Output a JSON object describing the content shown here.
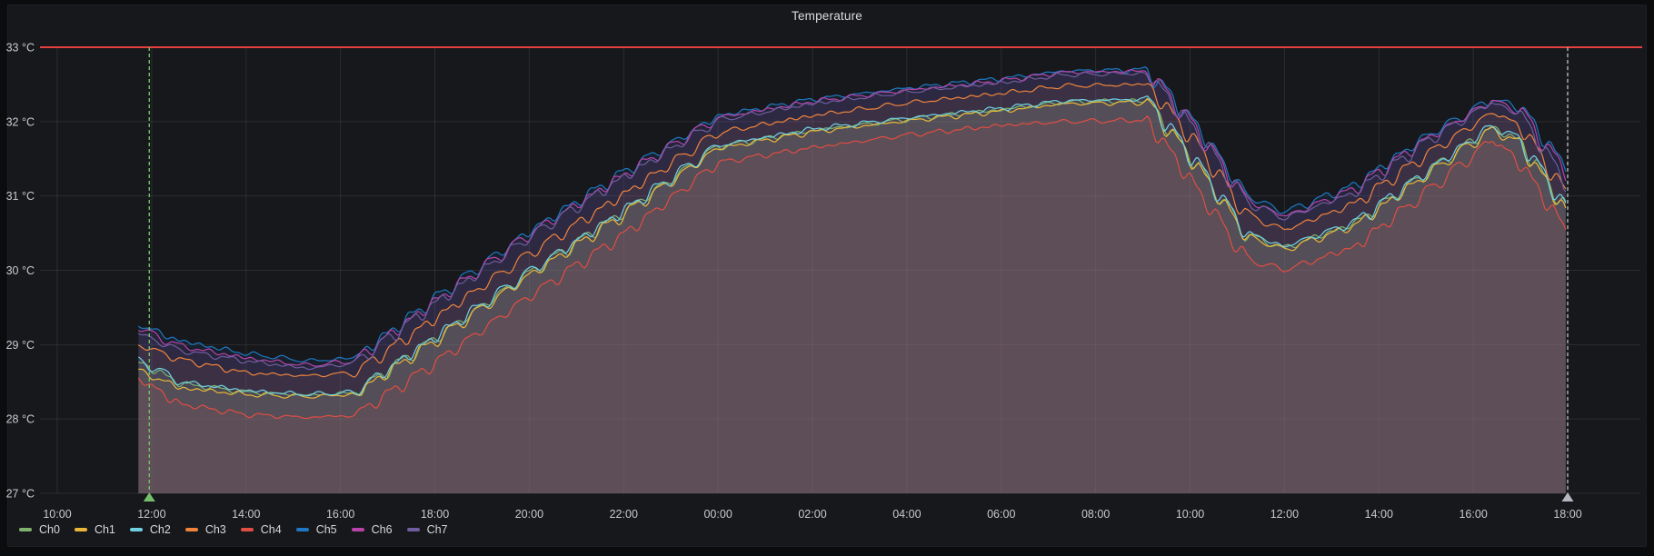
{
  "panel": {
    "title": "Temperature"
  },
  "chart_data": {
    "type": "line",
    "title": "Temperature",
    "unit": "°C",
    "ylim": [
      27,
      33
    ],
    "grid": true,
    "legend_position": "bottom-left",
    "y_ticks": [
      {
        "value": 27,
        "label": "27 °C"
      },
      {
        "value": 28,
        "label": "28 °C"
      },
      {
        "value": 29,
        "label": "29 °C"
      },
      {
        "value": 30,
        "label": "30 °C"
      },
      {
        "value": 31,
        "label": "31 °C"
      },
      {
        "value": 32,
        "label": "32 °C"
      },
      {
        "value": 33,
        "label": "33 °C"
      }
    ],
    "x_ticks": [
      {
        "t": 0,
        "label": "10:00"
      },
      {
        "t": 2,
        "label": "12:00"
      },
      {
        "t": 4,
        "label": "14:00"
      },
      {
        "t": 6,
        "label": "16:00"
      },
      {
        "t": 8,
        "label": "18:00"
      },
      {
        "t": 10,
        "label": "20:00"
      },
      {
        "t": 12,
        "label": "22:00"
      },
      {
        "t": 14,
        "label": "00:00"
      },
      {
        "t": 16,
        "label": "02:00"
      },
      {
        "t": 18,
        "label": "04:00"
      },
      {
        "t": 20,
        "label": "06:00"
      },
      {
        "t": 22,
        "label": "08:00"
      },
      {
        "t": 24,
        "label": "10:00"
      },
      {
        "t": 26,
        "label": "12:00"
      },
      {
        "t": 28,
        "label": "14:00"
      },
      {
        "t": 30,
        "label": "16:00"
      },
      {
        "t": 32,
        "label": "18:00"
      }
    ],
    "threshold": {
      "value": 33,
      "color": "#e5413e"
    },
    "annotations": [
      {
        "t": 1.95,
        "color": "#73BF69",
        "kind": "region-start"
      },
      {
        "t": 32.0,
        "color": "#b4b7bd",
        "kind": "region-end"
      }
    ],
    "fill_opacity": 0.1,
    "time_keys_hours_from_first_tick": [
      1.72,
      2.6,
      4,
      5.3,
      6.3,
      8,
      10,
      12,
      14,
      16,
      18,
      20,
      21.3,
      23.1,
      24.2,
      25.2,
      26,
      27.5,
      29,
      30.4,
      31,
      32
    ],
    "series": [
      {
        "name": "Ch0",
        "color": "#7EB26D",
        "values": [
          28.77,
          28.48,
          28.36,
          28.32,
          28.35,
          29.08,
          29.96,
          30.78,
          31.66,
          31.88,
          32.03,
          32.16,
          32.26,
          32.28,
          31.38,
          30.48,
          30.3,
          30.63,
          31.3,
          31.93,
          31.73,
          30.8
        ]
      },
      {
        "name": "Ch1",
        "color": "#EAB839",
        "values": [
          28.65,
          28.42,
          28.33,
          28.3,
          28.33,
          29.05,
          29.93,
          30.75,
          31.64,
          31.86,
          32.01,
          32.14,
          32.24,
          32.26,
          31.36,
          30.46,
          30.28,
          30.6,
          31.28,
          31.9,
          31.7,
          30.76
        ]
      },
      {
        "name": "Ch2",
        "color": "#6ED0E0",
        "values": [
          28.8,
          28.5,
          28.38,
          28.33,
          28.36,
          29.1,
          29.98,
          30.8,
          31.68,
          31.9,
          32.05,
          32.18,
          32.28,
          32.3,
          31.4,
          30.5,
          30.32,
          30.65,
          31.32,
          31.95,
          31.75,
          30.82
        ]
      },
      {
        "name": "Ch3",
        "color": "#EF843C",
        "values": [
          29.0,
          28.8,
          28.62,
          28.58,
          28.62,
          29.35,
          30.22,
          31.02,
          31.85,
          32.08,
          32.25,
          32.38,
          32.48,
          32.5,
          31.65,
          30.75,
          30.54,
          30.9,
          31.55,
          32.12,
          31.95,
          31.0
        ]
      },
      {
        "name": "Ch4",
        "color": "#E24D42",
        "values": [
          28.55,
          28.2,
          28.06,
          28.02,
          28.05,
          28.75,
          29.65,
          30.48,
          31.45,
          31.65,
          31.82,
          31.95,
          32.0,
          32.02,
          31.05,
          30.15,
          30.0,
          30.32,
          31.05,
          31.75,
          31.45,
          30.5
        ]
      },
      {
        "name": "Ch5",
        "color": "#1F78C1",
        "values": [
          29.27,
          29.05,
          28.88,
          28.78,
          28.82,
          29.62,
          30.52,
          31.32,
          32.08,
          32.3,
          32.45,
          32.58,
          32.68,
          32.7,
          31.9,
          31.0,
          30.78,
          31.15,
          31.8,
          32.3,
          32.2,
          31.35
        ]
      },
      {
        "name": "Ch6",
        "color": "#BA43A9",
        "values": [
          29.22,
          28.98,
          28.82,
          28.72,
          28.78,
          29.58,
          30.48,
          31.28,
          32.05,
          32.27,
          32.42,
          32.55,
          32.66,
          32.68,
          31.85,
          30.95,
          30.72,
          31.1,
          31.76,
          32.28,
          32.15,
          31.28
        ]
      },
      {
        "name": "Ch7",
        "color": "#705DA0",
        "values": [
          29.15,
          28.92,
          28.78,
          28.68,
          28.75,
          29.55,
          30.45,
          31.25,
          32.02,
          32.24,
          32.4,
          32.52,
          32.63,
          32.65,
          31.82,
          30.92,
          30.7,
          31.05,
          31.73,
          32.26,
          32.1,
          31.15
        ]
      }
    ]
  }
}
